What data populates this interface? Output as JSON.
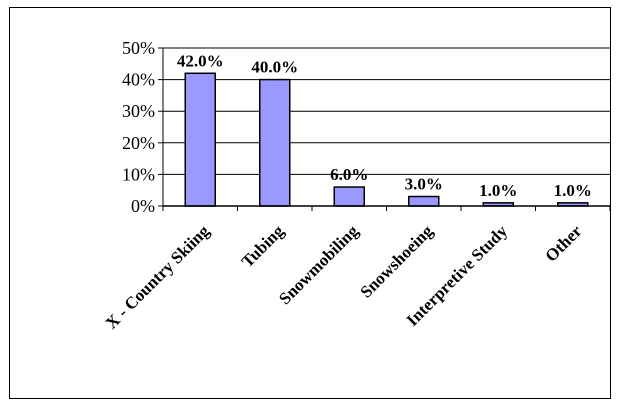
{
  "chart_data": {
    "type": "bar",
    "categories": [
      "X - Country Skiing",
      "Tubing",
      "Snowmobiling",
      "Snowshoeing",
      "Interpretive Study",
      "Other"
    ],
    "values": [
      42.0,
      40.0,
      6.0,
      3.0,
      1.0,
      1.0
    ],
    "data_labels": [
      "42.0%",
      "40.0%",
      "6.0%",
      "3.0%",
      "1.0%",
      "1.0%"
    ],
    "y_ticks": [
      "0%",
      "10%",
      "20%",
      "30%",
      "40%",
      "50%"
    ],
    "ylim": [
      0,
      50
    ],
    "grid": true,
    "legend": "none",
    "colors": {
      "bar": "#9999ff",
      "bar_border": "#000000",
      "grid": "#000000"
    }
  }
}
